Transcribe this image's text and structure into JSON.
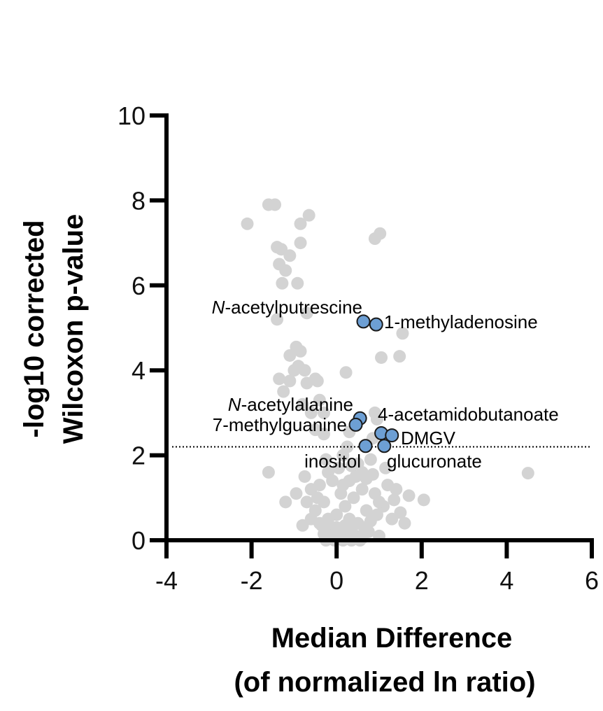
{
  "chart_data": {
    "type": "scatter",
    "title": "",
    "xlabel_lines": [
      "Median Difference",
      "(of normalized ln ratio)"
    ],
    "ylabel_lines": [
      "-log10 corrected",
      "Wilcoxon p-value"
    ],
    "xlim": [
      -4,
      6
    ],
    "ylim": [
      0,
      10
    ],
    "x_ticks": [
      -4,
      -2,
      0,
      2,
      4,
      6
    ],
    "y_ticks": [
      0,
      2,
      4,
      6,
      8,
      10
    ],
    "x_tick_labels": [
      "-4",
      "-2",
      "0",
      "2",
      "4",
      "6"
    ],
    "y_tick_labels": [
      "0",
      "2",
      "4",
      "6",
      "8",
      "10"
    ],
    "threshold_y": 2.2,
    "grid": false,
    "colors": {
      "background_points": "#d3d3d3",
      "highlight_points": "#6d9fd4",
      "highlight_edge": "#1a1a1a",
      "axis": "#000000"
    },
    "highlighted": [
      {
        "x": 0.63,
        "y": 5.15,
        "label_prefix": "N",
        "label_rest": "-acetylputrescine"
      },
      {
        "x": 0.93,
        "y": 5.08,
        "label_prefix": "",
        "label_rest": "1-methyladenosine"
      },
      {
        "x": 0.55,
        "y": 2.87,
        "label_prefix": "N",
        "label_rest": "-acetylalanine"
      },
      {
        "x": 0.45,
        "y": 2.72,
        "label_prefix": "",
        "label_rest": "7-methylguanine"
      },
      {
        "x": 1.05,
        "y": 2.52,
        "label_prefix": "",
        "label_rest": "4-acetamidobutanoate"
      },
      {
        "x": 1.3,
        "y": 2.47,
        "label_prefix": "",
        "label_rest": "DMGV"
      },
      {
        "x": 0.68,
        "y": 2.22,
        "label_prefix": "",
        "label_rest": "inositol"
      },
      {
        "x": 1.12,
        "y": 2.22,
        "label_prefix": "",
        "label_rest": "glucuronate"
      }
    ],
    "background_points": [
      [
        -1.6,
        7.9
      ],
      [
        -1.45,
        7.9
      ],
      [
        -0.85,
        7.45
      ],
      [
        -0.65,
        7.65
      ],
      [
        -2.1,
        7.45
      ],
      [
        0.9,
        7.1
      ],
      [
        1.02,
        7.22
      ],
      [
        -1.4,
        6.9
      ],
      [
        -1.3,
        6.85
      ],
      [
        -1.1,
        6.7
      ],
      [
        -0.85,
        7.0
      ],
      [
        -1.35,
        6.5
      ],
      [
        -1.2,
        6.35
      ],
      [
        -1.28,
        6.05
      ],
      [
        -0.92,
        6.05
      ],
      [
        -1.4,
        5.2
      ],
      [
        -0.7,
        5.35
      ],
      [
        1.55,
        4.87
      ],
      [
        1.05,
        4.3
      ],
      [
        1.48,
        4.33
      ],
      [
        0.22,
        3.95
      ],
      [
        -0.95,
        4.55
      ],
      [
        -1.1,
        4.35
      ],
      [
        -0.85,
        4.45
      ],
      [
        -0.9,
        4.1
      ],
      [
        -1.0,
        4.0
      ],
      [
        -0.75,
        4.0
      ],
      [
        -1.35,
        3.8
      ],
      [
        -1.1,
        3.75
      ],
      [
        -1.25,
        3.5
      ],
      [
        -0.7,
        3.7
      ],
      [
        -0.5,
        3.8
      ],
      [
        -0.45,
        3.75
      ],
      [
        -0.8,
        3.2
      ],
      [
        -0.6,
        3.0
      ],
      [
        -0.4,
        3.3
      ],
      [
        -0.3,
        3.0
      ],
      [
        0.9,
        3.0
      ],
      [
        0.95,
        2.85
      ],
      [
        -0.5,
        2.6
      ],
      [
        -0.3,
        2.5
      ],
      [
        0.85,
        2.4
      ],
      [
        0.3,
        2.55
      ],
      [
        0.15,
        2.0
      ],
      [
        -1.6,
        1.6
      ],
      [
        4.5,
        1.58
      ],
      [
        1.7,
        1.05
      ],
      [
        2.05,
        0.95
      ],
      [
        1.35,
        0.95
      ],
      [
        -0.75,
        1.5
      ],
      [
        -0.95,
        1.1
      ],
      [
        -1.2,
        0.9
      ],
      [
        -0.7,
        0.9
      ],
      [
        -0.8,
        0.35
      ],
      [
        1.5,
        0.65
      ],
      [
        1.1,
        0.8
      ],
      [
        1.3,
        0.5
      ],
      [
        0.75,
        0.2
      ],
      [
        1.0,
        0.1
      ],
      [
        0.5,
        1.8
      ],
      [
        0.8,
        1.9
      ],
      [
        -0.4,
        1.3
      ],
      [
        -0.2,
        1.6
      ],
      [
        -0.6,
        1.2
      ],
      [
        0.3,
        1.4
      ],
      [
        0.6,
        1.2
      ],
      [
        0.9,
        1.1
      ],
      [
        1.0,
        0.9
      ],
      [
        1.2,
        1.3
      ],
      [
        0.1,
        1.1
      ],
      [
        -0.1,
        1.4
      ],
      [
        0.4,
        1.0
      ],
      [
        -0.3,
        0.9
      ],
      [
        -0.5,
        0.7
      ],
      [
        0.2,
        0.8
      ],
      [
        0.7,
        0.7
      ],
      [
        0.0,
        0.6
      ],
      [
        -0.2,
        0.5
      ],
      [
        0.3,
        0.5
      ],
      [
        0.5,
        0.4
      ],
      [
        -0.4,
        0.4
      ],
      [
        -0.1,
        0.3
      ],
      [
        0.1,
        0.2
      ],
      [
        0.35,
        0.25
      ],
      [
        -0.3,
        0.15
      ],
      [
        0.05,
        0.05
      ],
      [
        0.25,
        0.1
      ],
      [
        -0.15,
        0.1
      ],
      [
        0.45,
        0.1
      ],
      [
        0.6,
        0.05
      ],
      [
        -0.05,
        0.0
      ],
      [
        0.15,
        0.0
      ],
      [
        0.35,
        0.0
      ],
      [
        -0.25,
        0.0
      ],
      [
        0.55,
        0.0
      ],
      [
        0.0,
        0.3
      ],
      [
        0.2,
        0.35
      ],
      [
        -0.35,
        0.35
      ],
      [
        0.65,
        0.3
      ],
      [
        0.8,
        0.45
      ],
      [
        -0.6,
        0.5
      ],
      [
        0.95,
        0.6
      ],
      [
        -0.45,
        1.0
      ],
      [
        0.15,
        1.3
      ],
      [
        0.45,
        1.5
      ],
      [
        0.7,
        1.45
      ],
      [
        -0.25,
        1.9
      ],
      [
        0.05,
        1.7
      ],
      [
        0.35,
        1.75
      ],
      [
        0.6,
        1.6
      ],
      [
        0.85,
        1.55
      ],
      [
        1.15,
        1.7
      ],
      [
        1.4,
        1.2
      ],
      [
        1.6,
        0.4
      ],
      [
        0.25,
        2.2
      ]
    ]
  }
}
